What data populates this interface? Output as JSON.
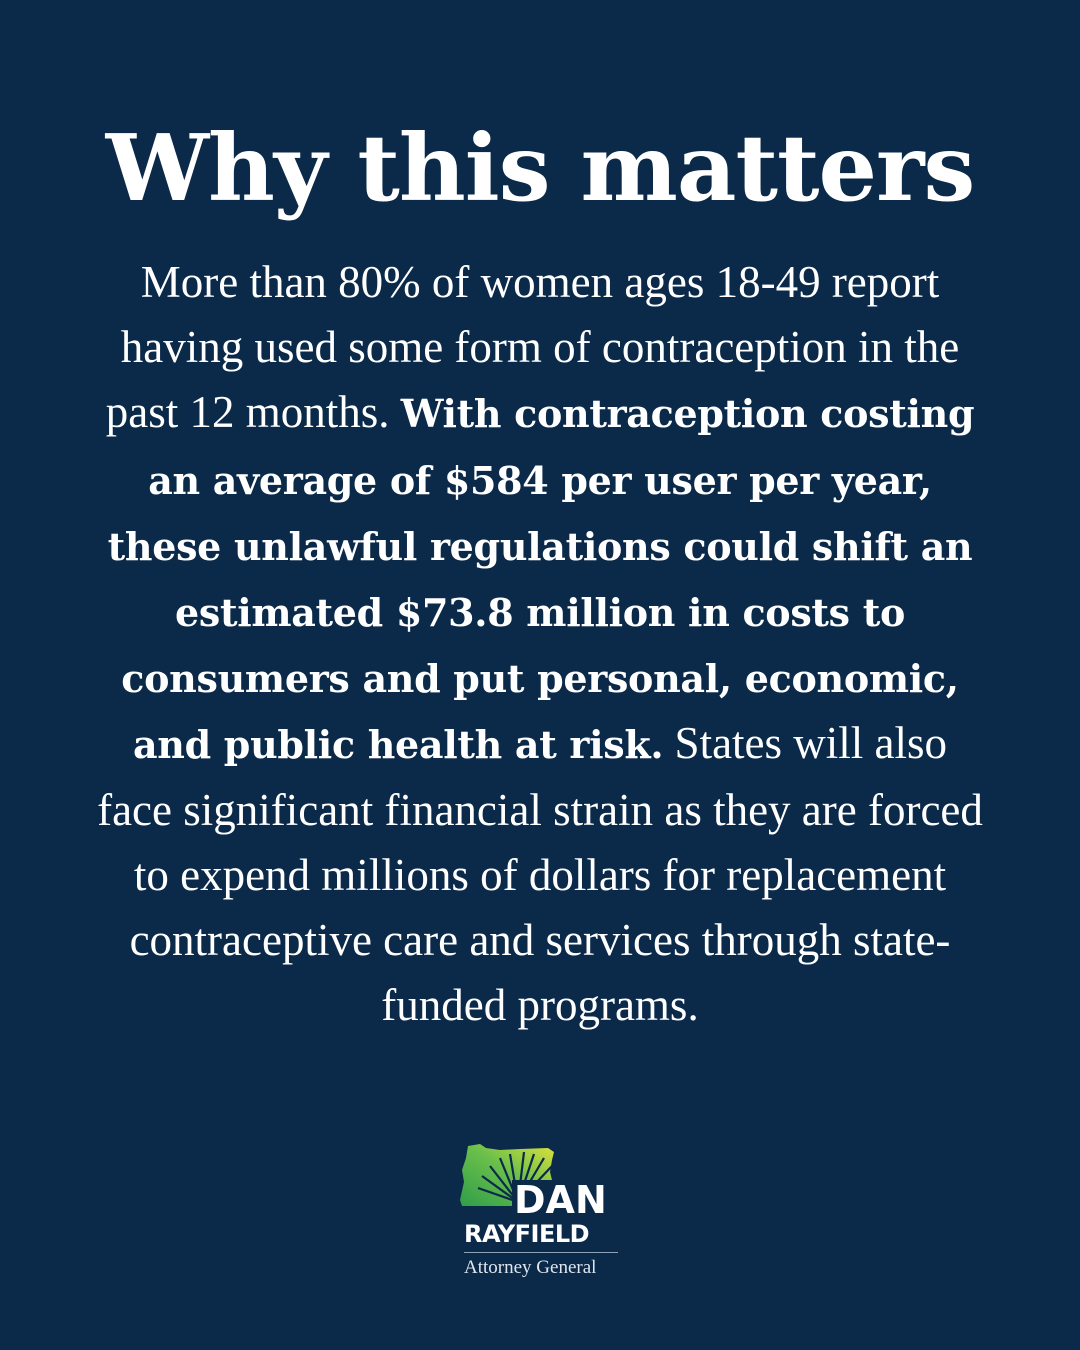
{
  "title": "Why this matters",
  "paragraph": {
    "intro": "More than 80% of women ages 18-49 report having used some form of contraception in the past 12 months.",
    "emphasis": "With contraception costing an average of $584 per user per year, these unlawful regulations could shift an estimated $73.8 million in costs to consumers and put personal, economic, and public health at risk.",
    "closing": "States will also face significant financial strain as they are forced to expend millions of dollars for replacement contraceptive care and services through state-funded programs."
  },
  "logo": {
    "icon": "oregon-state-sunburst-icon",
    "first_name": "DAN",
    "last_name": "RAYFIELD",
    "subtitle": "Attorney General",
    "colors": {
      "green": "#3aa94a",
      "yellow": "#d9df3a"
    }
  },
  "colors": {
    "background": "#0b2a4a",
    "text": "#ffffff"
  }
}
